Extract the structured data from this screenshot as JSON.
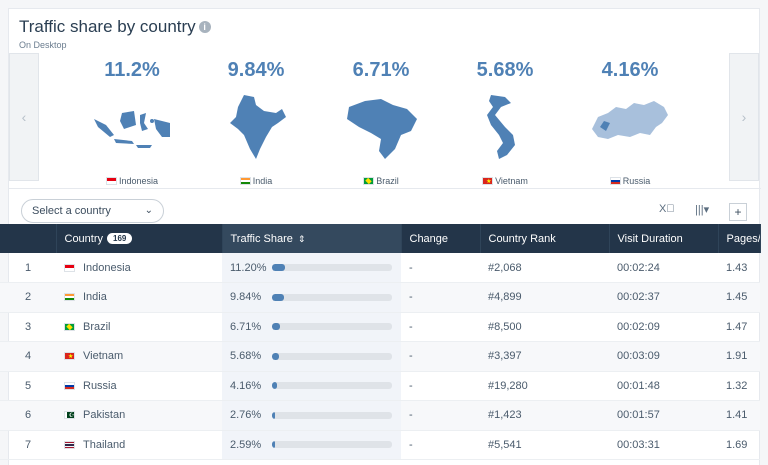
{
  "header": {
    "title": "Traffic share by country",
    "info_icon": "i",
    "subtitle": "On Desktop"
  },
  "carousel": {
    "prev": "‹",
    "next": "›",
    "slides": [
      {
        "pct": "11.2%",
        "label": "Indonesia",
        "flag": "id"
      },
      {
        "pct": "9.84%",
        "label": "India",
        "flag": "in"
      },
      {
        "pct": "6.71%",
        "label": "Brazil",
        "flag": "br"
      },
      {
        "pct": "5.68%",
        "label": "Vietnam",
        "flag": "vn"
      },
      {
        "pct": "4.16%",
        "label": "Russia",
        "flag": "ru"
      }
    ]
  },
  "toolbar": {
    "select_label": "Select a country",
    "select_chevron": "⌄",
    "excel_icon": "X⃞",
    "columns_icon": "|||▾",
    "plus": "+"
  },
  "table": {
    "headers": {
      "rank": "",
      "country": "Country",
      "country_count": "169",
      "share": "Traffic Share",
      "share_sort": "⇕",
      "change": "Change",
      "country_rank": "Country Rank",
      "visit_duration": "Visit Duration",
      "pages": "Pages/"
    },
    "rows": [
      {
        "n": "1",
        "country": "Indonesia",
        "flag": "id",
        "share": "11.20%",
        "share_value": 11.2,
        "change": "-",
        "rank": "#2,068",
        "duration": "00:02:24",
        "pages": "1.43"
      },
      {
        "n": "2",
        "country": "India",
        "flag": "in",
        "share": "9.84%",
        "share_value": 9.84,
        "change": "-",
        "rank": "#4,899",
        "duration": "00:02:37",
        "pages": "1.45"
      },
      {
        "n": "3",
        "country": "Brazil",
        "flag": "br",
        "share": "6.71%",
        "share_value": 6.71,
        "change": "-",
        "rank": "#8,500",
        "duration": "00:02:09",
        "pages": "1.47"
      },
      {
        "n": "4",
        "country": "Vietnam",
        "flag": "vn",
        "share": "5.68%",
        "share_value": 5.68,
        "change": "-",
        "rank": "#3,397",
        "duration": "00:03:09",
        "pages": "1.91"
      },
      {
        "n": "5",
        "country": "Russia",
        "flag": "ru",
        "share": "4.16%",
        "share_value": 4.16,
        "change": "-",
        "rank": "#19,280",
        "duration": "00:01:48",
        "pages": "1.32"
      },
      {
        "n": "6",
        "country": "Pakistan",
        "flag": "pk",
        "share": "2.76%",
        "share_value": 2.76,
        "change": "-",
        "rank": "#1,423",
        "duration": "00:01:57",
        "pages": "1.41"
      },
      {
        "n": "7",
        "country": "Thailand",
        "flag": "th",
        "share": "2.59%",
        "share_value": 2.59,
        "change": "-",
        "rank": "#5,541",
        "duration": "00:03:31",
        "pages": "1.69"
      }
    ]
  },
  "colors": {
    "accent": "#4f81b5",
    "header_bg": "#233549",
    "bar_track": "#dfe3e8"
  }
}
